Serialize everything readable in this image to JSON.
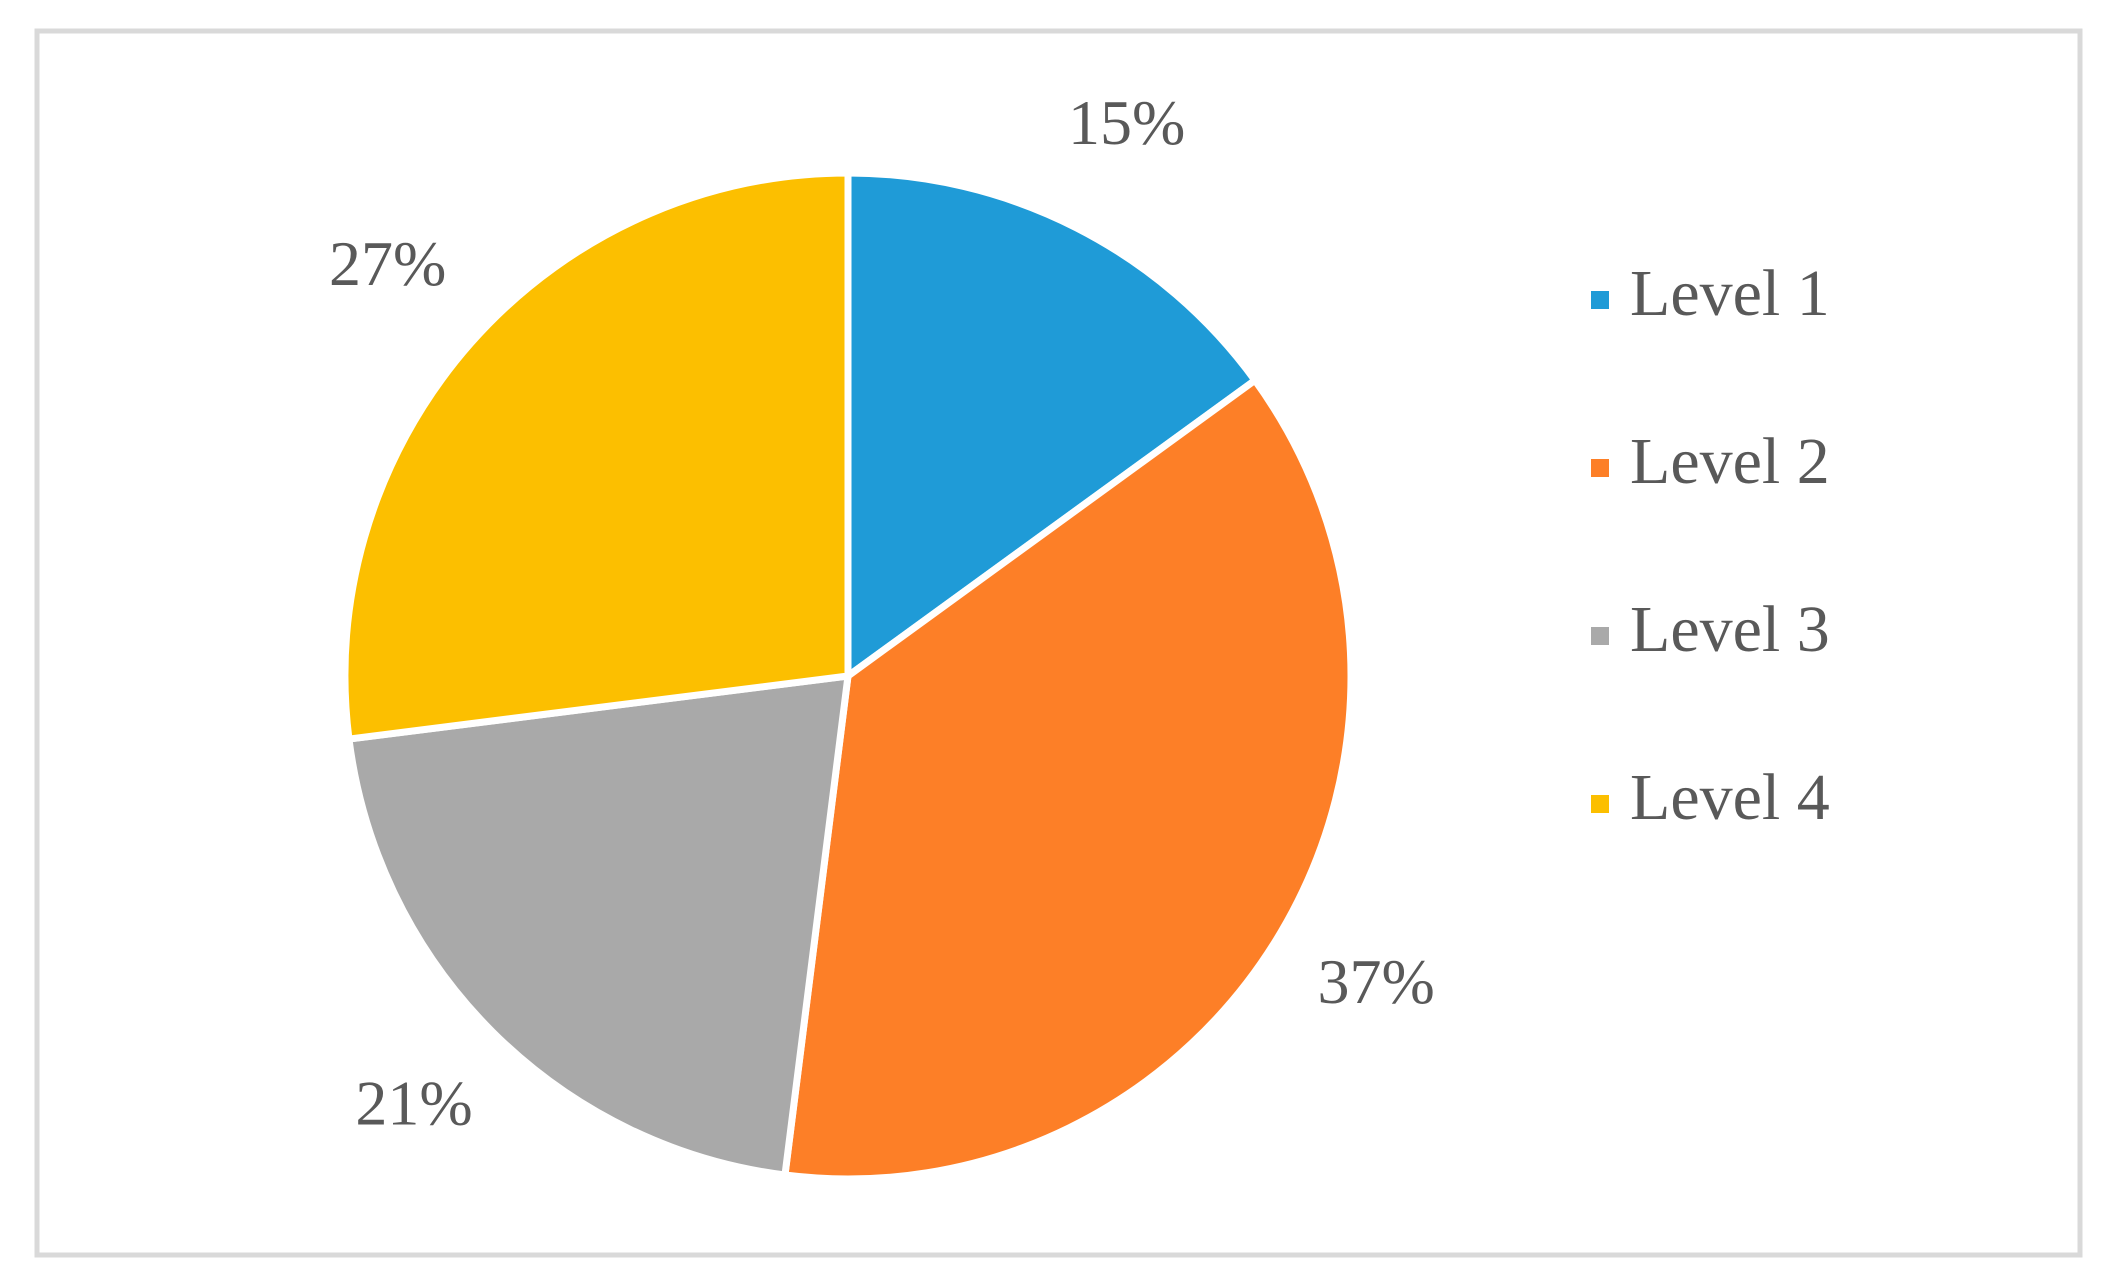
{
  "chart_data": {
    "type": "pie",
    "categories": [
      "Level 1",
      "Level 2",
      "Level 3",
      "Level 4"
    ],
    "values": [
      15,
      37,
      21,
      27
    ],
    "value_labels": [
      "15%",
      "37%",
      "21%",
      "27%"
    ],
    "colors": [
      "#1f9bd7",
      "#fd7f27",
      "#a9a9a9",
      "#fcbf00"
    ],
    "legend": "right"
  }
}
